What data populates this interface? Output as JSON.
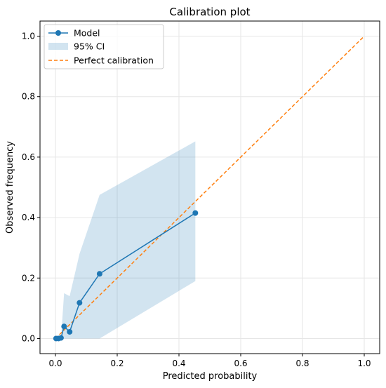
{
  "chart_data": {
    "type": "line",
    "title": "Calibration plot",
    "xlabel": "Predicted probability",
    "ylabel": "Observed frequency",
    "xlim": [
      -0.05,
      1.05
    ],
    "ylim": [
      -0.05,
      1.05
    ],
    "xticks": [
      "0.0",
      "0.2",
      "0.4",
      "0.6",
      "0.8",
      "1.0"
    ],
    "yticks": [
      "0.0",
      "0.2",
      "0.4",
      "0.6",
      "0.8",
      "1.0"
    ],
    "grid": true,
    "legend_position": "top-left",
    "series": [
      {
        "name": "Model",
        "style": "line-with-markers",
        "color": "#1f77b4",
        "x": [
          0.002,
          0.01,
          0.018,
          0.028,
          0.046,
          0.078,
          0.143,
          0.453
        ],
        "y": [
          0.0,
          0.0,
          0.002,
          0.04,
          0.022,
          0.118,
          0.214,
          0.415
        ]
      },
      {
        "name": "95% CI",
        "style": "band",
        "color": "#1f77b4",
        "x": [
          0.002,
          0.01,
          0.018,
          0.028,
          0.046,
          0.078,
          0.143,
          0.453
        ],
        "lower": [
          0.0,
          0.0,
          0.0,
          0.0,
          0.0,
          0.0,
          0.0,
          0.19
        ],
        "upper": [
          0.0,
          0.0,
          0.0,
          0.15,
          0.14,
          0.28,
          0.475,
          0.652
        ]
      },
      {
        "name": "Perfect calibration",
        "style": "dashed-line",
        "color": "#ff7f0e",
        "x": [
          0.0,
          1.0
        ],
        "y": [
          0.0,
          1.0
        ]
      }
    ]
  }
}
